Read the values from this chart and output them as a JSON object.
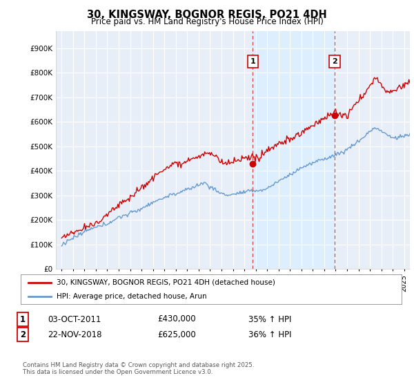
{
  "title": "30, KINGSWAY, BOGNOR REGIS, PO21 4DH",
  "subtitle": "Price paid vs. HM Land Registry's House Price Index (HPI)",
  "ytick_values": [
    0,
    100000,
    200000,
    300000,
    400000,
    500000,
    600000,
    700000,
    800000,
    900000
  ],
  "ylim": [
    0,
    970000
  ],
  "line1_color": "#cc0000",
  "line2_color": "#6699cc",
  "marker1_date": 2011.75,
  "marker1_value": 430000,
  "marker1_label": "1",
  "marker2_date": 2018.9,
  "marker2_value": 625000,
  "marker2_label": "2",
  "legend_label1": "30, KINGSWAY, BOGNOR REGIS, PO21 4DH (detached house)",
  "legend_label2": "HPI: Average price, detached house, Arun",
  "footer": "Contains HM Land Registry data © Crown copyright and database right 2025.\nThis data is licensed under the Open Government Licence v3.0.",
  "background_color": "#ffffff",
  "plot_bg_color": "#e8eef8",
  "grid_color": "#ffffff",
  "shade_color": "#ddeeff",
  "vline_color": "#cc4444",
  "xmin": 1994.5,
  "xmax": 2025.5,
  "xticks": [
    1995,
    1996,
    1997,
    1998,
    1999,
    2000,
    2001,
    2002,
    2003,
    2004,
    2005,
    2006,
    2007,
    2008,
    2009,
    2010,
    2011,
    2012,
    2013,
    2014,
    2015,
    2016,
    2017,
    2018,
    2019,
    2020,
    2021,
    2022,
    2023,
    2024,
    2025
  ]
}
